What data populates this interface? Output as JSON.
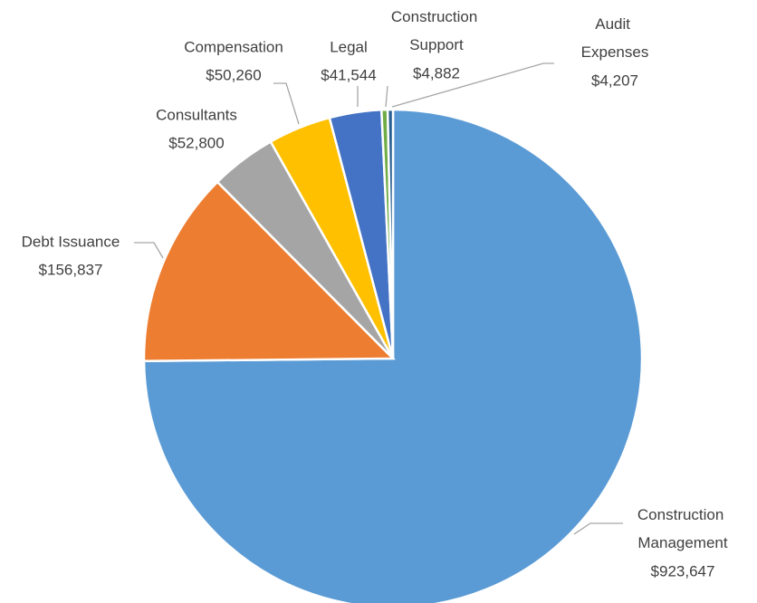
{
  "chart_data": {
    "type": "pie",
    "categories": [
      "Construction Management",
      "Debt Issuance",
      "Consultants",
      "Compensation",
      "Legal",
      "Construction Support",
      "Audit Expenses"
    ],
    "values": [
      923647,
      156837,
      52800,
      50260,
      41544,
      4882,
      4207
    ],
    "value_labels": [
      "$923,647",
      "$156,837",
      "$52,800",
      "$50,260",
      "$41,544",
      "$4,882",
      "$4,207"
    ],
    "colors": [
      "#5b9bd5",
      "#ed7d31",
      "#a5a5a5",
      "#ffc000",
      "#4472c4",
      "#70ad47",
      "#255e91"
    ]
  }
}
